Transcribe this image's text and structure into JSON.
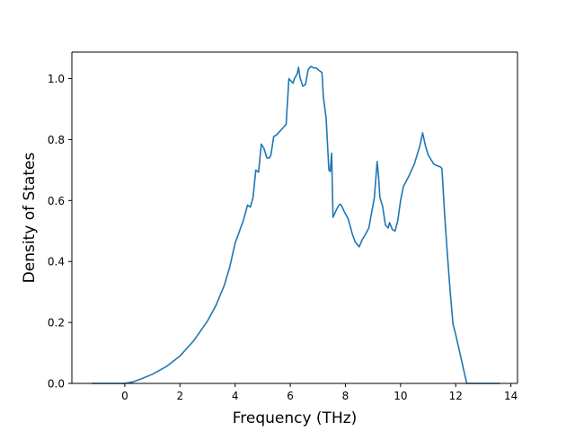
{
  "chart_data": {
    "type": "line",
    "title": "",
    "xlabel": "Frequency (THz)",
    "ylabel": "Density of States",
    "xlim": [
      -1.92,
      14.24
    ],
    "ylim": [
      0.0,
      1.087
    ],
    "xticks": [
      0,
      2,
      4,
      6,
      8,
      10,
      12,
      14
    ],
    "xtick_labels": [
      "0",
      "2",
      "4",
      "6",
      "8",
      "10",
      "12",
      "14"
    ],
    "yticks": [
      0.0,
      0.2,
      0.4,
      0.6,
      0.8,
      1.0
    ],
    "ytick_labels": [
      "0.0",
      "0.2",
      "0.4",
      "0.6",
      "0.8",
      "1.0"
    ],
    "grid": false,
    "series": [
      {
        "color": "#1f77b4",
        "x": [
          -1.2,
          -0.6,
          0.0,
          0.3,
          0.6,
          1.0,
          1.5,
          2.0,
          2.5,
          3.0,
          3.3,
          3.6,
          3.8,
          3.9,
          4.0,
          4.2,
          4.3,
          4.45,
          4.55,
          4.65,
          4.75,
          4.85,
          4.95,
          5.05,
          5.15,
          5.25,
          5.3,
          5.4,
          5.5,
          5.6,
          5.75,
          5.85,
          5.95,
          6.05,
          6.1,
          6.15,
          6.25,
          6.3,
          6.35,
          6.45,
          6.55,
          6.65,
          6.75,
          6.85,
          6.95,
          7.0,
          7.15,
          7.2,
          7.3,
          7.4,
          7.45,
          7.5,
          7.55,
          7.6,
          7.7,
          7.8,
          7.85,
          7.95,
          8.1,
          8.25,
          8.35,
          8.5,
          8.6,
          8.7,
          8.85,
          8.95,
          9.05,
          9.15,
          9.2,
          9.25,
          9.35,
          9.45,
          9.55,
          9.6,
          9.7,
          9.8,
          9.9,
          10.0,
          10.1,
          10.3,
          10.5,
          10.7,
          10.8,
          10.9,
          11.0,
          11.1,
          11.2,
          11.3,
          11.45,
          11.5,
          11.6,
          11.7,
          11.8,
          11.9,
          12.0,
          12.1,
          12.2,
          12.3,
          12.4,
          12.8,
          13.2,
          13.6
        ],
        "y": [
          0.0,
          0.0,
          0.0,
          0.005,
          0.015,
          0.03,
          0.055,
          0.09,
          0.14,
          0.205,
          0.255,
          0.32,
          0.38,
          0.42,
          0.46,
          0.51,
          0.535,
          0.585,
          0.578,
          0.61,
          0.7,
          0.693,
          0.785,
          0.77,
          0.74,
          0.74,
          0.75,
          0.81,
          0.815,
          0.825,
          0.84,
          0.85,
          1.0,
          0.99,
          0.985,
          1.0,
          1.015,
          1.037,
          1.005,
          0.975,
          0.98,
          1.03,
          1.04,
          1.035,
          1.035,
          1.03,
          1.02,
          0.94,
          0.87,
          0.7,
          0.695,
          0.755,
          0.545,
          0.555,
          0.575,
          0.588,
          0.585,
          0.565,
          0.54,
          0.49,
          0.465,
          0.448,
          0.47,
          0.485,
          0.51,
          0.56,
          0.61,
          0.728,
          0.68,
          0.61,
          0.58,
          0.52,
          0.51,
          0.528,
          0.505,
          0.5,
          0.535,
          0.6,
          0.645,
          0.68,
          0.72,
          0.78,
          0.822,
          0.78,
          0.75,
          0.735,
          0.72,
          0.715,
          0.71,
          0.705,
          0.55,
          0.42,
          0.3,
          0.195,
          0.16,
          0.12,
          0.08,
          0.04,
          0.0,
          0.0,
          0.0,
          0.0
        ]
      }
    ]
  }
}
